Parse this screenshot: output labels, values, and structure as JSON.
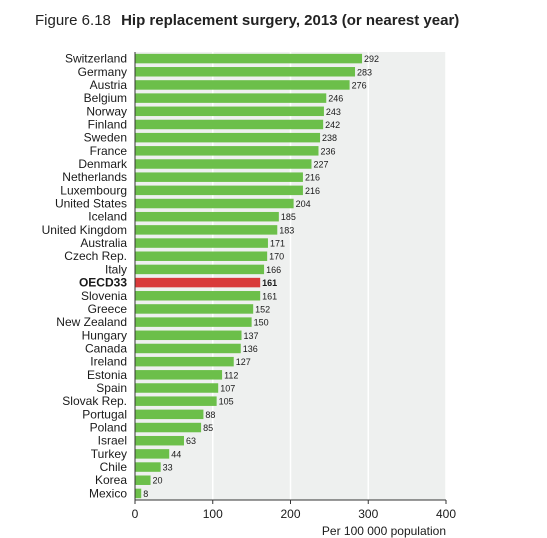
{
  "figure_label": "Figure  6.18",
  "title": "Hip replacement surgery, 2013 (or nearest year)",
  "chart_data": {
    "type": "bar",
    "orientation": "horizontal",
    "categories": [
      "Switzerland",
      "Germany",
      "Austria",
      "Belgium",
      "Norway",
      "Finland",
      "Sweden",
      "France",
      "Denmark",
      "Netherlands",
      "Luxembourg",
      "United States",
      "Iceland",
      "United Kingdom",
      "Australia",
      "Czech Rep.",
      "Italy",
      "OECD33",
      "Slovenia",
      "Greece",
      "New Zealand",
      "Hungary",
      "Canada",
      "Ireland",
      "Estonia",
      "Spain",
      "Slovak Rep.",
      "Portugal",
      "Poland",
      "Israel",
      "Turkey",
      "Chile",
      "Korea",
      "Mexico"
    ],
    "values": [
      292,
      283,
      276,
      246,
      243,
      242,
      238,
      236,
      227,
      216,
      216,
      204,
      185,
      183,
      171,
      170,
      166,
      161,
      161,
      152,
      150,
      137,
      136,
      127,
      112,
      107,
      105,
      88,
      85,
      63,
      44,
      33,
      20,
      8
    ],
    "highlight": "OECD33",
    "xlim": [
      0,
      400
    ],
    "xticks": [
      0,
      100,
      200,
      300,
      400
    ],
    "xlabel": "Per 100 000 population",
    "grid": "vertical",
    "colors": {
      "bar": "#6cbf4a",
      "highlight": "#d93a3a",
      "background": "#eef0ef",
      "grid": "#ffffff"
    }
  }
}
